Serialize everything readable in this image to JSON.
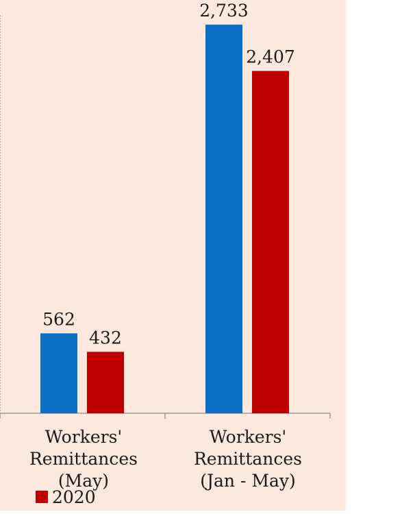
{
  "colors": {
    "background": "#fae9dc",
    "series_2019": "#0b6fc6",
    "series_2020": "#c00000",
    "axis": "#999999"
  },
  "chart_data": {
    "type": "bar",
    "categories": [
      "Workers'\nRemittances\n(May)",
      "Workers'\nRemittances\n(Jan - May)"
    ],
    "series": [
      {
        "values": [
          562,
          2733
        ],
        "labels": [
          "562",
          "2,733"
        ],
        "color": "#0b6fc6"
      },
      {
        "name": "2020",
        "values": [
          432,
          2407
        ],
        "labels": [
          "432",
          "2,407"
        ],
        "color": "#c00000"
      }
    ],
    "ylim": [
      0,
      2800
    ],
    "grid": false,
    "legend": {
      "position": "bottom-left",
      "entries": [
        "2020"
      ]
    }
  }
}
